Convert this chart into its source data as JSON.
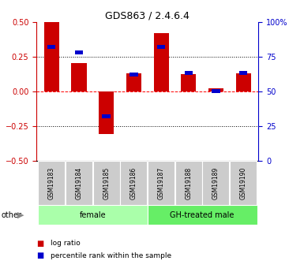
{
  "title": "GDS863 / 2.4.6.4",
  "samples": [
    "GSM19183",
    "GSM19184",
    "GSM19185",
    "GSM19186",
    "GSM19187",
    "GSM19188",
    "GSM19189",
    "GSM19190"
  ],
  "log_ratio": [
    0.5,
    0.2,
    -0.31,
    0.13,
    0.42,
    0.12,
    0.02,
    0.13
  ],
  "percentile_rank": [
    82,
    78,
    32,
    62,
    82,
    63,
    50,
    63
  ],
  "groups": [
    {
      "label": "female",
      "start": 0,
      "end": 4,
      "color": "#aaffaa"
    },
    {
      "label": "GH-treated male",
      "start": 4,
      "end": 8,
      "color": "#66ee66"
    }
  ],
  "bar_color": "#cc0000",
  "square_color": "#0000cc",
  "ylim_left": [
    -0.5,
    0.5
  ],
  "ylim_right": [
    0,
    100
  ],
  "yticks_left": [
    -0.5,
    -0.25,
    0,
    0.25,
    0.5
  ],
  "yticks_right": [
    0,
    25,
    50,
    75,
    100
  ],
  "ytick_labels_right": [
    "0",
    "25",
    "50",
    "75",
    "100%"
  ],
  "bar_width": 0.55,
  "figsize": [
    3.85,
    3.45
  ],
  "dpi": 100,
  "left_axis_color": "#cc0000",
  "right_axis_color": "#0000cc",
  "background_color": "#ffffff",
  "other_label": "other"
}
